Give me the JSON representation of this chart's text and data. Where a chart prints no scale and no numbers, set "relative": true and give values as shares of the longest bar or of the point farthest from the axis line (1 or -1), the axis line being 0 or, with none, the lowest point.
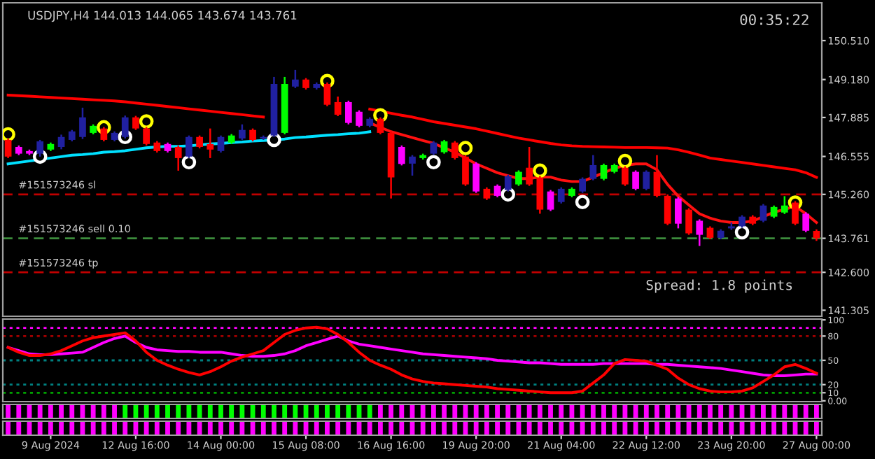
{
  "chart_data": [
    {
      "type": "candlestick",
      "title": "USDJPY,H4 144.013 144.065 143.674 143.761",
      "categories": [
        null,
        null,
        null,
        null,
        null,
        null,
        null,
        null,
        null,
        null,
        null,
        null,
        null,
        null,
        null,
        null,
        null,
        null,
        null,
        null,
        null,
        null,
        null,
        null,
        null,
        null,
        null,
        null,
        null,
        null,
        null,
        null,
        null,
        null,
        null,
        null,
        null,
        null,
        null,
        null,
        null,
        null,
        null,
        null,
        null,
        null,
        null,
        null,
        null,
        null,
        null,
        null,
        null,
        null,
        null,
        null,
        null,
        null,
        null,
        null,
        null,
        null,
        null,
        null,
        null,
        null,
        null,
        null,
        null,
        null,
        null,
        null,
        null,
        null,
        null,
        null,
        null
      ],
      "ohlc": [
        [
          147.12,
          147.17,
          146.5,
          146.55
        ],
        [
          146.88,
          146.93,
          146.6,
          146.65
        ],
        [
          146.74,
          146.79,
          146.6,
          146.65
        ],
        [
          146.65,
          147.12,
          146.55,
          147.07
        ],
        [
          146.79,
          147.03,
          146.74,
          146.98
        ],
        [
          146.88,
          147.3,
          146.8,
          147.22
        ],
        [
          147.12,
          147.46,
          147.07,
          147.41
        ],
        [
          147.22,
          148.22,
          147.15,
          147.89
        ],
        [
          147.36,
          147.65,
          147.31,
          147.6
        ],
        [
          147.51,
          147.56,
          147.07,
          147.12
        ],
        [
          147.12,
          147.41,
          147.07,
          147.36
        ],
        [
          147.22,
          147.95,
          147.17,
          147.89
        ],
        [
          147.89,
          147.94,
          147.46,
          147.51
        ],
        [
          147.51,
          147.56,
          146.93,
          146.98
        ],
        [
          147.03,
          147.08,
          146.69,
          146.74
        ],
        [
          146.98,
          147.03,
          146.69,
          146.74
        ],
        [
          146.88,
          146.93,
          146.07,
          146.5
        ],
        [
          146.55,
          147.27,
          146.5,
          147.22
        ],
        [
          147.22,
          147.27,
          146.83,
          146.88
        ],
        [
          146.98,
          147.51,
          146.5,
          146.79
        ],
        [
          146.74,
          147.27,
          146.69,
          147.22
        ],
        [
          147.03,
          147.32,
          146.98,
          147.27
        ],
        [
          147.17,
          147.65,
          147.12,
          147.46
        ],
        [
          147.46,
          147.51,
          147.07,
          147.12
        ],
        [
          147.17,
          147.27,
          147.12,
          147.22
        ],
        [
          147.27,
          149.27,
          147.22,
          149.03
        ],
        [
          147.36,
          149.27,
          147.31,
          149.03
        ],
        [
          148.94,
          149.51,
          148.89,
          149.18
        ],
        [
          149.18,
          149.23,
          148.84,
          148.89
        ],
        [
          148.89,
          149.08,
          148.84,
          149.03
        ],
        [
          149.03,
          149.08,
          148.27,
          148.32
        ],
        [
          148.41,
          148.6,
          147.93,
          147.98
        ],
        [
          148.41,
          148.46,
          147.65,
          147.7
        ],
        [
          148.08,
          148.13,
          147.55,
          147.6
        ],
        [
          147.6,
          147.89,
          147.55,
          147.84
        ],
        [
          147.84,
          147.89,
          147.31,
          147.36
        ],
        [
          147.36,
          147.41,
          145.12,
          145.84
        ],
        [
          146.88,
          146.93,
          146.25,
          146.3
        ],
        [
          146.31,
          146.6,
          145.9,
          146.55
        ],
        [
          146.5,
          146.65,
          146.45,
          146.6
        ],
        [
          146.65,
          147.08,
          146.6,
          147.03
        ],
        [
          146.7,
          147.12,
          146.65,
          147.07
        ],
        [
          147.03,
          147.08,
          146.45,
          146.5
        ],
        [
          146.55,
          146.6,
          145.55,
          145.6
        ],
        [
          146.31,
          146.36,
          145.31,
          145.36
        ],
        [
          145.45,
          145.5,
          145.07,
          145.12
        ],
        [
          145.55,
          145.6,
          145.16,
          145.21
        ],
        [
          145.41,
          145.93,
          145.36,
          145.88
        ],
        [
          145.6,
          146.08,
          145.55,
          146.03
        ],
        [
          146.17,
          146.88,
          145.55,
          145.6
        ],
        [
          145.84,
          145.89,
          144.6,
          144.74
        ],
        [
          145.36,
          145.41,
          144.69,
          144.74
        ],
        [
          145.0,
          145.5,
          144.95,
          145.45
        ],
        [
          145.21,
          145.5,
          145.16,
          145.45
        ],
        [
          145.36,
          145.84,
          145.31,
          145.79
        ],
        [
          145.79,
          146.6,
          145.74,
          146.26
        ],
        [
          145.79,
          146.31,
          145.74,
          146.26
        ],
        [
          146.03,
          146.31,
          145.98,
          146.26
        ],
        [
          146.17,
          146.22,
          145.55,
          145.6
        ],
        [
          146.03,
          146.08,
          145.4,
          145.45
        ],
        [
          145.45,
          146.08,
          145.4,
          146.03
        ],
        [
          146.03,
          146.6,
          145.16,
          145.21
        ],
        [
          145.21,
          145.26,
          144.21,
          144.26
        ],
        [
          145.12,
          145.17,
          144.1,
          144.26
        ],
        [
          144.74,
          144.79,
          143.88,
          143.93
        ],
        [
          144.36,
          144.41,
          143.5,
          143.88
        ],
        [
          144.12,
          144.17,
          143.73,
          143.78
        ],
        [
          143.78,
          144.07,
          143.73,
          144.02
        ],
        [
          144.1,
          144.3,
          144.05,
          144.17
        ],
        [
          144.17,
          144.55,
          144.12,
          144.5
        ],
        [
          144.5,
          144.55,
          144.21,
          144.26
        ],
        [
          144.36,
          144.93,
          144.31,
          144.88
        ],
        [
          144.5,
          144.88,
          144.45,
          144.83
        ],
        [
          144.64,
          145.2,
          144.59,
          144.88
        ],
        [
          144.98,
          145.03,
          144.21,
          144.26
        ],
        [
          144.6,
          144.65,
          143.97,
          144.02
        ],
        [
          144.013,
          144.065,
          143.674,
          143.761
        ]
      ],
      "colors": [
        "#ff0000",
        "#ff00ff",
        "#ff00ff",
        "#2020a0",
        "#00ff00",
        "#2020a0",
        "#2020a0",
        "#2020a0",
        "#00ff00",
        "#ff0000",
        "#2020a0",
        "#2020a0",
        "#ff0000",
        "#ff0000",
        "#ff0000",
        "#ff00ff",
        "#ff0000",
        "#2020a0",
        "#ff0000",
        "#ff0000",
        "#2020a0",
        "#00ff00",
        "#2020a0",
        "#ff0000",
        "#2020a0",
        "#2020a0",
        "#00ff00",
        "#2020a0",
        "#ff0000",
        "#2020a0",
        "#ff0000",
        "#ff0000",
        "#ff00ff",
        "#ff00ff",
        "#2020a0",
        "#ff0000",
        "#ff0000",
        "#ff00ff",
        "#2020a0",
        "#00ff00",
        "#2020a0",
        "#00ff00",
        "#ff0000",
        "#ff0000",
        "#ff00ff",
        "#ff0000",
        "#ff00ff",
        "#2020a0",
        "#00ff00",
        "#ff0000",
        "#ff0000",
        "#ff00ff",
        "#2020a0",
        "#00ff00",
        "#2020a0",
        "#2020a0",
        "#00ff00",
        "#00ff00",
        "#ff0000",
        "#ff00ff",
        "#2020a0",
        "#ff0000",
        "#ff0000",
        "#ff00ff",
        "#ff0000",
        "#ff00ff",
        "#ff0000",
        "#2020a0",
        "#2020a0",
        "#2020a0",
        "#ff0000",
        "#2020a0",
        "#00ff00",
        "#00ff00",
        "#ff0000",
        "#ff00ff",
        "#ff0000"
      ],
      "series": [
        {
          "type": "line",
          "color": "#ff0000",
          "values": [
            148.65,
            148.63,
            148.61,
            148.59,
            148.57,
            148.55,
            148.53,
            148.51,
            148.49,
            148.47,
            148.45,
            148.42,
            148.38,
            148.34,
            148.3,
            148.26,
            148.22,
            148.18,
            148.14,
            148.1,
            148.06,
            148.02,
            147.98,
            147.94,
            147.9,
            null,
            null,
            null,
            null,
            null,
            null,
            null,
            null,
            null,
            148.17,
            148.1,
            148.03,
            147.96,
            147.9,
            147.82,
            147.74,
            147.68,
            147.62,
            147.56,
            147.5,
            147.42,
            147.34,
            147.26,
            147.18,
            147.12,
            147.06,
            147.0,
            146.95,
            146.92,
            146.9,
            146.89,
            146.88,
            146.87,
            146.86,
            146.86,
            146.86,
            146.85,
            146.84,
            146.78,
            146.7,
            146.6,
            146.5,
            146.45,
            146.4,
            146.35,
            146.3,
            146.25,
            146.2,
            146.15,
            146.1,
            146.0,
            145.84
          ]
        },
        {
          "type": "line",
          "color": "#ff1010",
          "values": [
            null,
            null,
            null,
            null,
            null,
            null,
            null,
            null,
            null,
            null,
            null,
            null,
            null,
            null,
            null,
            null,
            null,
            null,
            null,
            null,
            null,
            null,
            null,
            null,
            null,
            null,
            null,
            null,
            null,
            null,
            null,
            null,
            null,
            null,
            147.7,
            147.55,
            147.4,
            147.3,
            147.2,
            147.1,
            147.0,
            146.85,
            146.7,
            146.5,
            146.3,
            146.15,
            146.0,
            145.9,
            145.8,
            145.8,
            145.85,
            145.85,
            145.75,
            145.7,
            145.7,
            145.85,
            146.0,
            146.15,
            146.25,
            146.3,
            146.3,
            146.1,
            145.6,
            145.2,
            144.9,
            144.6,
            144.45,
            144.35,
            144.3,
            144.3,
            144.35,
            144.5,
            144.65,
            144.75,
            144.85,
            144.6,
            144.3
          ]
        },
        {
          "type": "line",
          "color": "#00e0ff",
          "values": [
            146.3,
            146.35,
            146.4,
            146.45,
            146.5,
            146.55,
            146.6,
            146.62,
            146.65,
            146.7,
            146.72,
            146.75,
            146.8,
            146.85,
            146.88,
            146.9,
            146.9,
            146.92,
            146.95,
            146.98,
            147.0,
            147.03,
            147.05,
            147.08,
            147.1,
            147.12,
            147.15,
            147.2,
            147.22,
            147.25,
            147.28,
            147.3,
            147.33,
            147.35,
            147.4,
            null,
            null,
            null,
            null,
            null,
            null,
            null,
            null,
            null,
            null,
            null,
            null,
            null,
            null,
            null,
            null,
            null,
            null,
            null,
            null,
            null,
            null,
            null,
            null,
            null,
            null,
            null,
            null,
            null,
            null,
            null,
            null,
            null,
            null,
            null,
            null,
            null,
            null,
            null,
            null,
            null,
            null
          ]
        },
        {
          "type": "scatter",
          "marker": "circle",
          "color": "#ffff00",
          "values": [
            147.31,
            null,
            null,
            null,
            null,
            null,
            null,
            null,
            null,
            147.55,
            null,
            null,
            null,
            147.75,
            null,
            null,
            null,
            null,
            null,
            null,
            null,
            null,
            null,
            null,
            null,
            null,
            null,
            null,
            null,
            null,
            149.13,
            null,
            null,
            null,
            null,
            147.96,
            null,
            null,
            null,
            null,
            null,
            null,
            null,
            146.84,
            null,
            null,
            null,
            null,
            null,
            null,
            146.07,
            null,
            null,
            null,
            null,
            null,
            null,
            null,
            146.4,
            null,
            null,
            null,
            null,
            null,
            null,
            null,
            null,
            null,
            null,
            null,
            null,
            null,
            null,
            null,
            144.98,
            null,
            null
          ]
        },
        {
          "type": "scatter",
          "marker": "circle",
          "color": "#ffffff",
          "values": [
            null,
            null,
            null,
            146.55,
            null,
            null,
            null,
            null,
            null,
            null,
            null,
            147.22,
            null,
            null,
            null,
            null,
            null,
            146.36,
            null,
            null,
            null,
            null,
            null,
            null,
            null,
            147.12,
            null,
            null,
            null,
            null,
            null,
            null,
            null,
            null,
            null,
            null,
            null,
            null,
            null,
            null,
            146.36,
            null,
            null,
            null,
            null,
            null,
            null,
            145.26,
            null,
            null,
            null,
            null,
            null,
            null,
            145.0,
            null,
            null,
            null,
            null,
            null,
            null,
            null,
            null,
            null,
            null,
            null,
            null,
            null,
            null,
            143.97,
            null,
            null,
            null,
            null,
            null,
            null,
            null
          ]
        }
      ],
      "ylim": [
        141.1,
        151.8
      ],
      "yticks": [
        {
          "value": 141.305,
          "label": "141.305"
        },
        {
          "value": 142.6,
          "label": "142.600"
        },
        143.761,
        {
          "value": 145.26,
          "label": "145.260"
        },
        146.555,
        147.885,
        {
          "value": 149.18,
          "label": "149.180"
        },
        {
          "value": 150.51,
          "label": "150.510"
        }
      ],
      "ref_lines": [
        {
          "axis": "y",
          "value": 145.26,
          "label": "#151573246 sl",
          "color": "#c00000",
          "line_style": "dashed"
        },
        {
          "axis": "y",
          "value": 143.761,
          "label": "#151573246 sell 0.10",
          "color": "#3c8c3c",
          "line_style": "dashed"
        },
        {
          "axis": "y",
          "value": 142.6,
          "label": "#151573246 tp",
          "color": "#c00000",
          "line_style": "dashed"
        }
      ],
      "annotations": [
        "00:35:22",
        "Spread: 1.8 points"
      ],
      "tick_labels": "y",
      "legend": false,
      "grid": false
    },
    {
      "type": "line",
      "categories": [
        null,
        null,
        null,
        null,
        null,
        null,
        null,
        null,
        null,
        null,
        null,
        null,
        null,
        null,
        null,
        null,
        null,
        null,
        null,
        null,
        null,
        null,
        null,
        null,
        null,
        null,
        null,
        null,
        null,
        null,
        null,
        null,
        null,
        null,
        null,
        null,
        null,
        null,
        null,
        null,
        null,
        null,
        null,
        null,
        null,
        null,
        null,
        null,
        null,
        null,
        null,
        null,
        null,
        null,
        null,
        null,
        null,
        null,
        null,
        null,
        null,
        null,
        null,
        null,
        null,
        null,
        null,
        null,
        null,
        null,
        null,
        null,
        null,
        null,
        null,
        null,
        null
      ],
      "series": [
        {
          "color": "#ff00ff",
          "values": [
            66,
            62,
            58,
            57,
            57,
            58,
            59,
            60,
            66,
            72,
            77,
            80,
            72,
            66,
            63,
            62,
            61,
            61,
            60,
            60,
            60,
            58,
            56,
            55,
            55,
            56,
            58,
            62,
            68,
            72,
            76,
            80,
            74,
            70,
            68,
            66,
            64,
            62,
            60,
            58,
            57,
            56,
            55,
            54,
            53,
            52,
            50,
            49,
            48,
            47,
            47,
            46,
            45,
            45,
            45,
            45,
            46,
            46,
            46,
            46,
            46,
            45,
            45,
            44,
            43,
            42,
            41,
            40,
            38,
            36,
            34,
            32,
            31,
            31,
            32,
            33,
            33
          ]
        },
        {
          "color": "#ff0000",
          "values": [
            66,
            60,
            56,
            56,
            58,
            62,
            68,
            74,
            78,
            80,
            82,
            84,
            74,
            60,
            50,
            44,
            39,
            35,
            32,
            36,
            42,
            49,
            54,
            58,
            62,
            72,
            82,
            87,
            90,
            91,
            89,
            82,
            72,
            60,
            50,
            44,
            39,
            32,
            27,
            24,
            22,
            21,
            20,
            19,
            18,
            17,
            15,
            14,
            13,
            12,
            11,
            10,
            10,
            10,
            12,
            22,
            32,
            46,
            51,
            50,
            49,
            44,
            39,
            28,
            20,
            15,
            12,
            11,
            11,
            12,
            16,
            24,
            32,
            42,
            45,
            40,
            34
          ]
        }
      ],
      "ylim": [
        -1,
        101
      ],
      "yticks": [
        {
          "value": 0,
          "label": "0.00"
        },
        10,
        20,
        50,
        80,
        100
      ],
      "ref_lines": [
        {
          "axis": "y",
          "value": 90,
          "color": "#ff00ff",
          "line_style": "dotted"
        },
        {
          "axis": "y",
          "value": 80,
          "color": "#a00000",
          "line_style": "dotted"
        },
        {
          "axis": "y",
          "value": 50,
          "color": "#008080",
          "line_style": "dotted"
        },
        {
          "axis": "y",
          "value": 20,
          "color": "#008080",
          "line_style": "dotted"
        },
        {
          "axis": "y",
          "value": 10,
          "color": "#00a000",
          "line_style": "dotted"
        }
      ],
      "tick_labels": "y",
      "legend": false,
      "grid": false
    },
    {
      "type": "bar",
      "relative": true,
      "categories": [
        null,
        null,
        null,
        null,
        null,
        null,
        null,
        null,
        null,
        null,
        null,
        null,
        null,
        null,
        null,
        null,
        null,
        null,
        null,
        null,
        null,
        null,
        null,
        null,
        null,
        null,
        null,
        null,
        null,
        null,
        null,
        null,
        null,
        null,
        null,
        null,
        null,
        null,
        null,
        null,
        null,
        null,
        null,
        null,
        null,
        null,
        null,
        null,
        null,
        null,
        null,
        null,
        null,
        null,
        null,
        null,
        null,
        null,
        null,
        null,
        null,
        null,
        null,
        null,
        null,
        null,
        null,
        null,
        null,
        null,
        null,
        null,
        null,
        null,
        null,
        null,
        null
      ],
      "values": [
        1,
        1,
        1,
        1,
        1,
        1,
        1,
        1,
        1,
        1,
        1,
        1,
        1,
        1,
        1,
        1,
        1,
        1,
        1,
        1,
        1,
        1,
        1,
        1,
        1,
        1,
        1,
        1,
        1,
        1,
        1,
        1,
        1,
        1,
        1,
        1,
        1,
        1,
        1,
        1,
        1,
        1,
        1,
        1,
        1,
        1,
        1,
        1,
        1,
        1,
        1,
        1,
        1,
        1,
        1,
        1,
        1,
        1,
        1,
        1,
        1,
        1,
        1,
        1,
        1,
        1,
        1,
        1,
        1,
        1,
        1,
        1,
        1,
        1,
        1,
        1,
        1
      ],
      "colors": [
        "#ff00ff",
        "#ff00ff",
        "#ff00ff",
        "#ff00ff",
        "#ff00ff",
        "#ff00ff",
        "#ff00ff",
        "#ff00ff",
        "#ff00ff",
        "#ff00ff",
        "#ff00ff",
        "#00ff00",
        "#00ff00",
        "#00ff00",
        "#00ff00",
        "#00ff00",
        "#00ff00",
        "#00ff00",
        "#00ff00",
        "#00ff00",
        "#00ff00",
        "#00ff00",
        "#00ff00",
        "#00ff00",
        "#00ff00",
        "#00ff00",
        "#00ff00",
        "#00ff00",
        "#00ff00",
        "#00ff00",
        "#00ff00",
        "#00ff00",
        "#00ff00",
        "#00ff00",
        "#00ff00",
        "#ff00ff",
        "#ff00ff",
        "#ff00ff",
        "#ff00ff",
        "#ff00ff",
        "#ff00ff",
        "#ff00ff",
        "#ff00ff",
        "#ff00ff",
        "#ff00ff",
        "#ff00ff",
        "#ff00ff",
        "#ff00ff",
        "#ff00ff",
        "#ff00ff",
        "#ff00ff",
        "#ff00ff",
        "#ff00ff",
        "#ff00ff",
        "#ff00ff",
        "#ff00ff",
        "#ff00ff",
        "#ff00ff",
        "#ff00ff",
        "#ff00ff",
        "#ff00ff",
        "#ff00ff",
        "#ff00ff",
        "#ff00ff",
        "#ff00ff",
        "#ff00ff",
        "#ff00ff",
        "#ff00ff",
        "#ff00ff",
        "#ff00ff",
        "#ff00ff",
        "#ff00ff",
        "#ff00ff",
        "#ff00ff",
        "#ff00ff",
        "#ff00ff",
        "#ff00ff"
      ],
      "tick_labels": false,
      "legend": false,
      "grid": false
    },
    {
      "type": "bar",
      "relative": true,
      "categories": [
        null,
        null,
        null,
        null,
        "9 Aug 2024",
        null,
        null,
        null,
        null,
        null,
        null,
        null,
        "12 Aug 16:00",
        null,
        null,
        null,
        null,
        null,
        null,
        null,
        "14 Aug 00:00",
        null,
        null,
        null,
        null,
        null,
        null,
        null,
        "15 Aug 08:00",
        null,
        null,
        null,
        null,
        null,
        null,
        null,
        "16 Aug 16:00",
        null,
        null,
        null,
        null,
        null,
        null,
        null,
        "19 Aug 20:00",
        null,
        null,
        null,
        null,
        null,
        null,
        null,
        "21 Aug 04:00",
        null,
        null,
        null,
        null,
        null,
        null,
        null,
        "22 Aug 12:00",
        null,
        null,
        null,
        null,
        null,
        null,
        null,
        "23 Aug 20:00",
        null,
        null,
        null,
        null,
        null,
        null,
        null,
        "27 Aug 00:00"
      ],
      "values": [
        1,
        1,
        1,
        1,
        1,
        1,
        1,
        1,
        1,
        1,
        1,
        1,
        1,
        1,
        1,
        1,
        1,
        1,
        1,
        1,
        1,
        1,
        1,
        1,
        1,
        1,
        1,
        1,
        1,
        1,
        1,
        1,
        1,
        1,
        1,
        1,
        1,
        1,
        1,
        1,
        1,
        1,
        1,
        1,
        1,
        1,
        1,
        1,
        1,
        1,
        1,
        1,
        1,
        1,
        1,
        1,
        1,
        1,
        1,
        1,
        1,
        1,
        1,
        1,
        1,
        1,
        1,
        1,
        1,
        1,
        1,
        1,
        1,
        1,
        1,
        1,
        1
      ],
      "color": "#ff00ff",
      "tick_labels": "x",
      "legend": false,
      "grid": false
    }
  ]
}
